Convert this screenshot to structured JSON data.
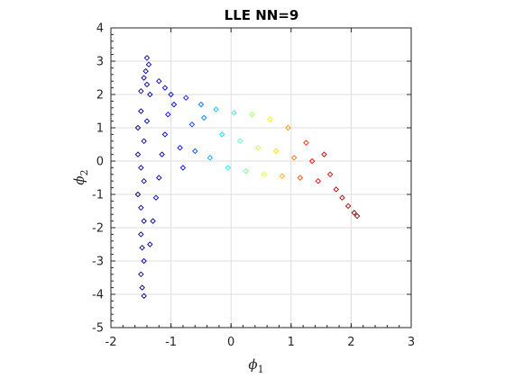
{
  "chart_data": {
    "type": "scatter",
    "title": "LLE NN=9",
    "xlabel": "ϕ",
    "xlabel_sub": "1",
    "ylabel": "ϕ",
    "ylabel_sub": "2",
    "xlim": [
      -2,
      3
    ],
    "ylim": [
      -5,
      4
    ],
    "xticks": [
      "-2",
      "-1",
      "0",
      "1",
      "2",
      "3"
    ],
    "yticks": [
      "-5",
      "-4",
      "-3",
      "-2",
      "-1",
      "0",
      "1",
      "2",
      "3",
      "4"
    ],
    "grid": true,
    "marker": "diamond-open",
    "colormap": "jet",
    "colormap_stops": [
      "#00007f",
      "#0000ff",
      "#00ffff",
      "#ffff00",
      "#ff0000",
      "#7f0000"
    ],
    "series": [
      {
        "points": [
          [
            -1.4,
            3.1
          ],
          [
            -1.37,
            2.9
          ],
          [
            -1.42,
            2.7
          ],
          [
            -1.45,
            2.5
          ],
          [
            -1.4,
            2.3
          ],
          [
            -1.5,
            2.1
          ],
          [
            -1.35,
            2.0
          ],
          [
            -1.2,
            2.4
          ],
          [
            -1.1,
            2.2
          ],
          [
            -1.0,
            2.0
          ],
          [
            -1.5,
            1.5
          ],
          [
            -1.4,
            1.2
          ],
          [
            -1.55,
            1.0
          ],
          [
            -1.45,
            0.6
          ],
          [
            -1.55,
            0.2
          ],
          [
            -1.5,
            -0.2
          ],
          [
            -1.45,
            -0.6
          ],
          [
            -1.55,
            -1.0
          ],
          [
            -1.5,
            -1.4
          ],
          [
            -1.45,
            -1.8
          ],
          [
            -1.5,
            -2.2
          ],
          [
            -1.48,
            -2.6
          ],
          [
            -1.45,
            -3.0
          ],
          [
            -1.5,
            -3.4
          ],
          [
            -1.48,
            -3.8
          ],
          [
            -1.45,
            -4.05
          ],
          [
            -1.35,
            -2.5
          ],
          [
            -1.3,
            -1.8
          ],
          [
            -1.25,
            -1.1
          ],
          [
            -1.2,
            -0.5
          ],
          [
            -1.15,
            0.2
          ],
          [
            -1.1,
            0.8
          ],
          [
            -1.05,
            1.4
          ],
          [
            -0.95,
            1.7
          ],
          [
            -0.85,
            0.4
          ],
          [
            -0.8,
            -0.2
          ],
          [
            -0.75,
            1.9
          ],
          [
            -0.65,
            1.1
          ],
          [
            -0.6,
            0.3
          ],
          [
            -0.5,
            1.7
          ],
          [
            -0.45,
            1.3
          ],
          [
            -0.35,
            0.1
          ],
          [
            -0.25,
            1.55
          ],
          [
            -0.15,
            0.8
          ],
          [
            -0.05,
            -0.2
          ],
          [
            0.05,
            1.45
          ],
          [
            0.15,
            0.6
          ],
          [
            0.25,
            -0.3
          ],
          [
            0.35,
            1.4
          ],
          [
            0.45,
            0.4
          ],
          [
            0.55,
            -0.4
          ],
          [
            0.65,
            1.25
          ],
          [
            0.75,
            0.3
          ],
          [
            0.85,
            -0.45
          ],
          [
            0.95,
            1.0
          ],
          [
            1.05,
            0.1
          ],
          [
            1.15,
            -0.5
          ],
          [
            1.25,
            0.55
          ],
          [
            1.35,
            0.0
          ],
          [
            1.45,
            -0.6
          ],
          [
            1.55,
            0.2
          ],
          [
            1.65,
            -0.4
          ],
          [
            1.75,
            -0.85
          ],
          [
            1.85,
            -1.1
          ],
          [
            1.95,
            -1.35
          ],
          [
            2.05,
            -1.55
          ],
          [
            2.1,
            -1.65
          ]
        ]
      }
    ]
  }
}
